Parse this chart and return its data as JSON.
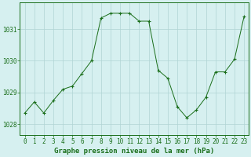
{
  "x": [
    0,
    1,
    2,
    3,
    4,
    5,
    6,
    7,
    8,
    9,
    10,
    11,
    12,
    13,
    14,
    15,
    16,
    17,
    18,
    19,
    20,
    21,
    22,
    23
  ],
  "y": [
    1028.35,
    1028.7,
    1028.35,
    1028.75,
    1029.1,
    1029.2,
    1029.6,
    1030.0,
    1031.35,
    1031.5,
    1031.5,
    1031.5,
    1031.25,
    1031.25,
    1029.7,
    1029.45,
    1028.55,
    1028.2,
    1028.45,
    1028.85,
    1029.65,
    1029.65,
    1030.05,
    1031.4
  ],
  "line_color": "#1a6e1a",
  "marker": "+",
  "marker_size": 3,
  "bg_color": "#d6f0f0",
  "grid_color": "#b0d4d4",
  "title": "Graphe pression niveau de la mer (hPa)",
  "xlim": [
    -0.5,
    23.5
  ],
  "ylim": [
    1027.65,
    1031.85
  ],
  "yticks": [
    1028,
    1029,
    1030,
    1031
  ],
  "xticks": [
    0,
    1,
    2,
    3,
    4,
    5,
    6,
    7,
    8,
    9,
    10,
    11,
    12,
    13,
    14,
    15,
    16,
    17,
    18,
    19,
    20,
    21,
    22,
    23
  ],
  "tick_fontsize": 5.5,
  "title_fontsize": 6.5,
  "axis_color": "#1a6e1a",
  "linewidth": 0.7,
  "marker_size_pt": 3.5
}
